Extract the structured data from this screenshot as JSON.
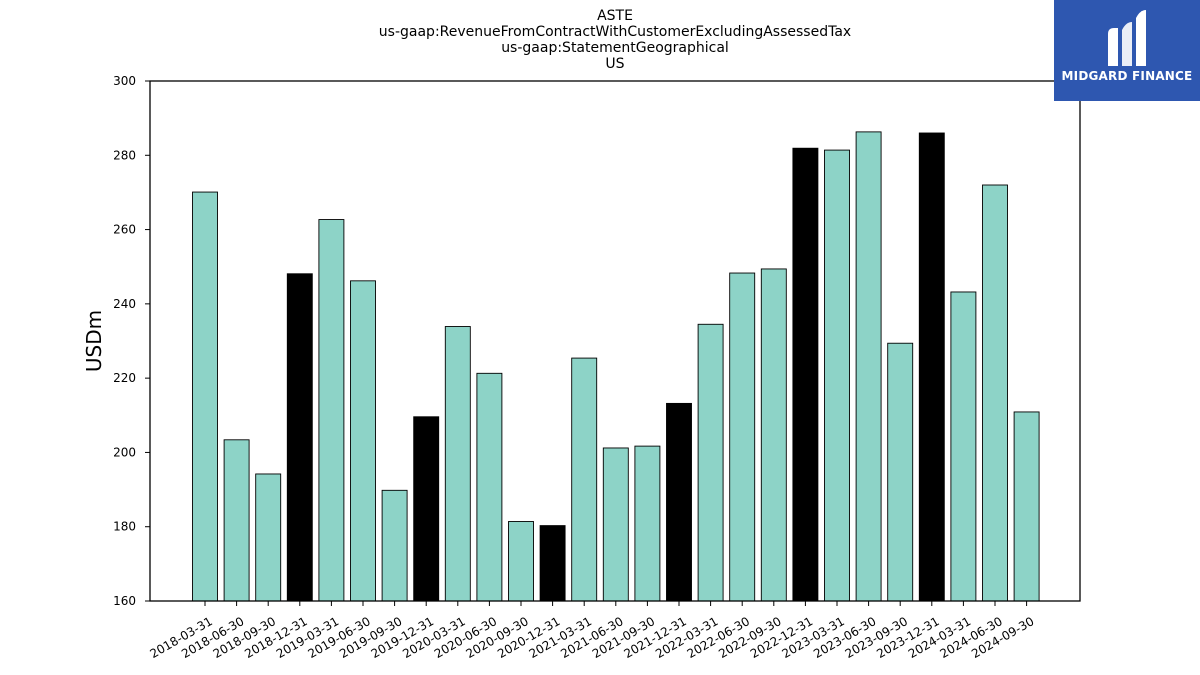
{
  "chart_data": {
    "type": "bar",
    "title": [
      "ASTE",
      "us-gaap:RevenueFromContractWithCustomerExcludingAssessedTax",
      "us-gaap:StatementGeographical",
      "US"
    ],
    "xlabel": "",
    "ylabel": "USDm",
    "ylim": [
      160,
      300
    ],
    "yticks": [
      160,
      180,
      200,
      220,
      240,
      260,
      280,
      300
    ],
    "grid": false,
    "categories": [
      "2018-03-31",
      "2018-06-30",
      "2018-09-30",
      "2018-12-31",
      "2019-03-31",
      "2019-06-30",
      "2019-09-30",
      "2019-12-31",
      "2020-03-31",
      "2020-06-30",
      "2020-09-30",
      "2020-12-31",
      "2021-03-31",
      "2021-06-30",
      "2021-09-30",
      "2021-12-31",
      "2022-03-31",
      "2022-06-30",
      "2022-09-30",
      "2022-12-31",
      "2023-03-31",
      "2023-06-30",
      "2023-09-30",
      "2023-12-31",
      "2024-03-31",
      "2024-06-30",
      "2024-09-30"
    ],
    "values": [
      270.1,
      203.4,
      194.2,
      248.1,
      262.7,
      246.2,
      189.8,
      209.6,
      233.9,
      221.3,
      181.4,
      180.3,
      225.4,
      201.2,
      201.7,
      213.2,
      234.5,
      248.3,
      249.4,
      281.9,
      281.4,
      286.3,
      229.4,
      286.0,
      243.2,
      272.0,
      210.9
    ],
    "colors": {
      "quarter": "#8dd3c7",
      "year_end": "#000000",
      "edge": "#000000"
    }
  },
  "logo": {
    "text": "MIDGARD FINANCE",
    "icon": "midgard-logo-icon",
    "background": "#2e57b0"
  }
}
